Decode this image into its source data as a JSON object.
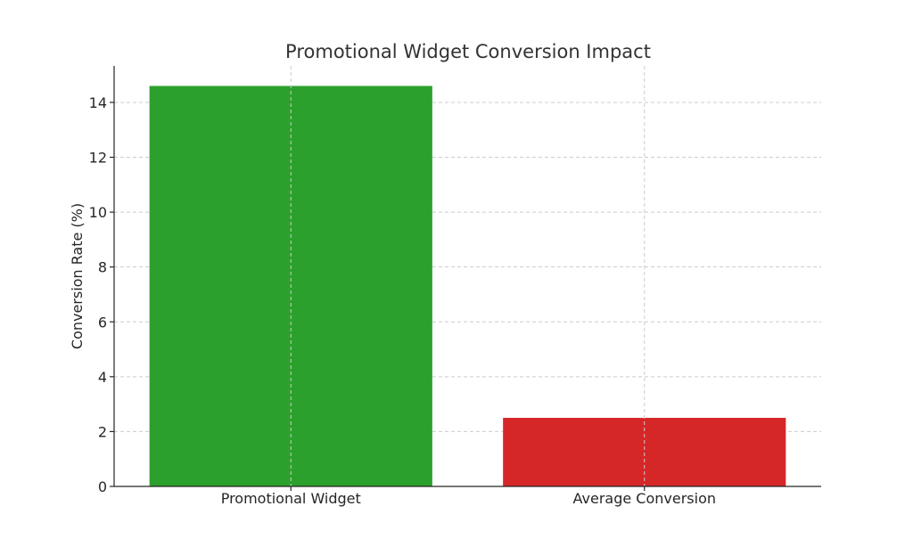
{
  "chart_data": {
    "type": "bar",
    "title": "Promotional Widget Conversion Impact",
    "xlabel": "",
    "ylabel": "Conversion Rate (%)",
    "categories": [
      "Promotional Widget",
      "Average Conversion"
    ],
    "values": [
      14.6,
      2.5
    ],
    "colors": [
      "#2ca02c",
      "#d62728"
    ],
    "ylim": [
      0,
      15.33
    ],
    "yticks": [
      0,
      2,
      4,
      6,
      8,
      10,
      12,
      14
    ],
    "grid": true,
    "legend": "none"
  }
}
